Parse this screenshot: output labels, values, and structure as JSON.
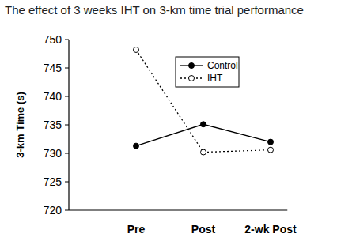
{
  "chart_data": {
    "type": "line",
    "title": "The effect of 3 weeks IHT on 3-km time trial performance",
    "y_label": "3-km Time (s)",
    "categories": [
      "Pre",
      "Post",
      "2-wk Post"
    ],
    "series": [
      {
        "name": "Control",
        "color": "#000000",
        "marker": "circle",
        "line_style": "solid",
        "values": [
          731.3,
          735.1,
          732.0
        ]
      },
      {
        "name": "IHT",
        "color": "#000000",
        "marker": "open_circle",
        "line_style": "dotted",
        "values": [
          748.2,
          730.2,
          730.6
        ]
      }
    ],
    "ylim": [
      720,
      750
    ],
    "yticks": [
      720,
      725,
      730,
      735,
      740,
      745,
      750
    ],
    "grid": false,
    "legend": "top-right"
  }
}
